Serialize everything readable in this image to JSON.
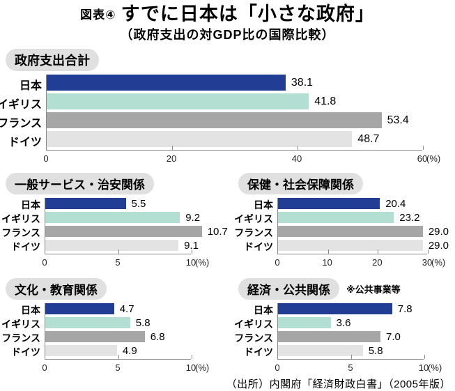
{
  "header": {
    "figure_label": "図表④",
    "title": "すでに日本は「小さな政府」",
    "subtitle": "（政府支出の対GDP比の国際比較）"
  },
  "colors": {
    "bars": [
      "#213d94",
      "#b3dfd2",
      "#a6a6a6",
      "#e3e3e3"
    ],
    "title_pill_bg": "#e0e0e0",
    "axis_line": "#8a8a8a"
  },
  "source": "（出所）内閣府「経済財政白書」（2005年版）",
  "chart_data": [
    {
      "type": "bar",
      "orientation": "horizontal",
      "title": "政府支出合計",
      "note": "",
      "categories": [
        "日本",
        "イギリス",
        "フランス",
        "ドイツ"
      ],
      "values": [
        38.1,
        41.8,
        53.4,
        48.7
      ],
      "value_labels": [
        "38.1",
        "41.8",
        "53.4",
        "48.7"
      ],
      "xlim": [
        0,
        60
      ],
      "ticks": [
        0,
        20,
        40,
        60
      ],
      "unit": "(%)"
    },
    {
      "type": "bar",
      "orientation": "horizontal",
      "title": "一般サービス・治安関係",
      "note": "",
      "categories": [
        "日本",
        "イギリス",
        "フランス",
        "ドイツ"
      ],
      "values": [
        5.5,
        9.2,
        10.7,
        9.1
      ],
      "value_labels": [
        "5.5",
        "9.2",
        "10.7",
        "9.1"
      ],
      "xlim": [
        0,
        10
      ],
      "ticks": [
        0,
        5,
        10
      ],
      "unit": "(%)"
    },
    {
      "type": "bar",
      "orientation": "horizontal",
      "title": "保健・社会保障関係",
      "note": "",
      "categories": [
        "日本",
        "イギリス",
        "フランス",
        "ドイツ"
      ],
      "values": [
        20.4,
        23.2,
        29.0,
        29.0
      ],
      "value_labels": [
        "20.4",
        "23.2",
        "29.0",
        "29.0"
      ],
      "xlim": [
        0,
        30
      ],
      "ticks": [
        0,
        10,
        20,
        30
      ],
      "unit": "(%)"
    },
    {
      "type": "bar",
      "orientation": "horizontal",
      "title": "文化・教育関係",
      "note": "",
      "categories": [
        "日本",
        "イギリス",
        "フランス",
        "ドイツ"
      ],
      "values": [
        4.7,
        5.8,
        6.8,
        4.9
      ],
      "value_labels": [
        "4.7",
        "5.8",
        "6.8",
        "4.9"
      ],
      "xlim": [
        0,
        10
      ],
      "ticks": [
        0,
        5,
        10
      ],
      "unit": "(%)"
    },
    {
      "type": "bar",
      "orientation": "horizontal",
      "title": "経済・公共関係",
      "note": "※公共事業等",
      "categories": [
        "日本",
        "イギリス",
        "フランス",
        "ドイツ"
      ],
      "values": [
        7.8,
        3.6,
        7.0,
        5.8
      ],
      "value_labels": [
        "7.8",
        "3.6",
        "7.0",
        "5.8"
      ],
      "xlim": [
        0,
        10
      ],
      "ticks": [
        0,
        5,
        10
      ],
      "unit": "(%)"
    }
  ]
}
